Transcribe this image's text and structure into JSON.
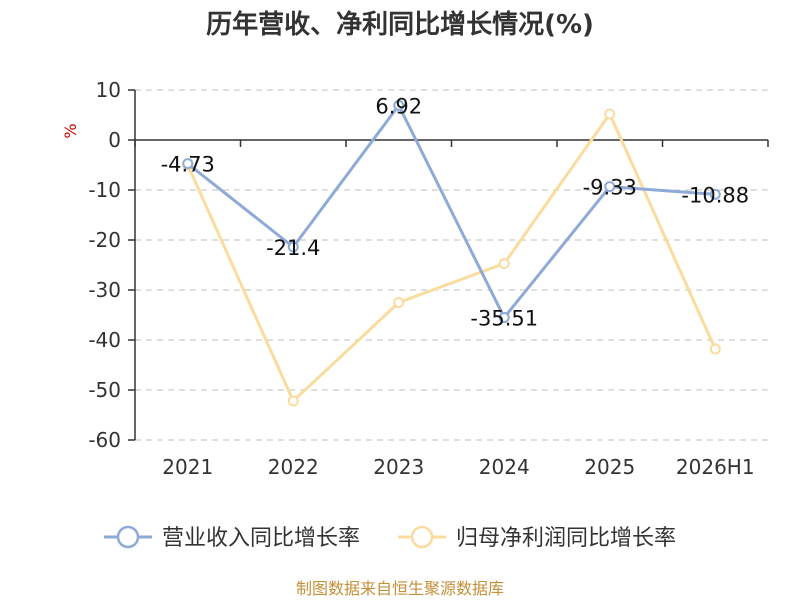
{
  "chart_data": {
    "type": "line",
    "title": "历年营收、净利同比增长情况(%)",
    "ylabel": "%",
    "categories": [
      "2021",
      "2022",
      "2023",
      "2024",
      "2025",
      "2026H1"
    ],
    "ylim": [
      -60,
      10
    ],
    "yticks": [
      10,
      0,
      -10,
      -20,
      -30,
      -40,
      -50,
      -60
    ],
    "grid": true,
    "legend_position": "bottom",
    "series": [
      {
        "name": "营业收入同比增长率",
        "color": "#8eaad6",
        "values": [
          -4.73,
          -21.4,
          6.92,
          -35.51,
          -9.33,
          -10.88
        ],
        "labels": [
          "-4.73",
          "-21.4",
          "6.92",
          "-35.51",
          "-9.33",
          "-10.88"
        ]
      },
      {
        "name": "归母净利润同比增长率",
        "color": "#f9dc9e",
        "values": [
          -5.0,
          -52.2,
          -32.5,
          -24.7,
          5.2,
          -41.8
        ]
      }
    ]
  },
  "footer": {
    "source": "制图数据来自恒生聚源数据库"
  }
}
